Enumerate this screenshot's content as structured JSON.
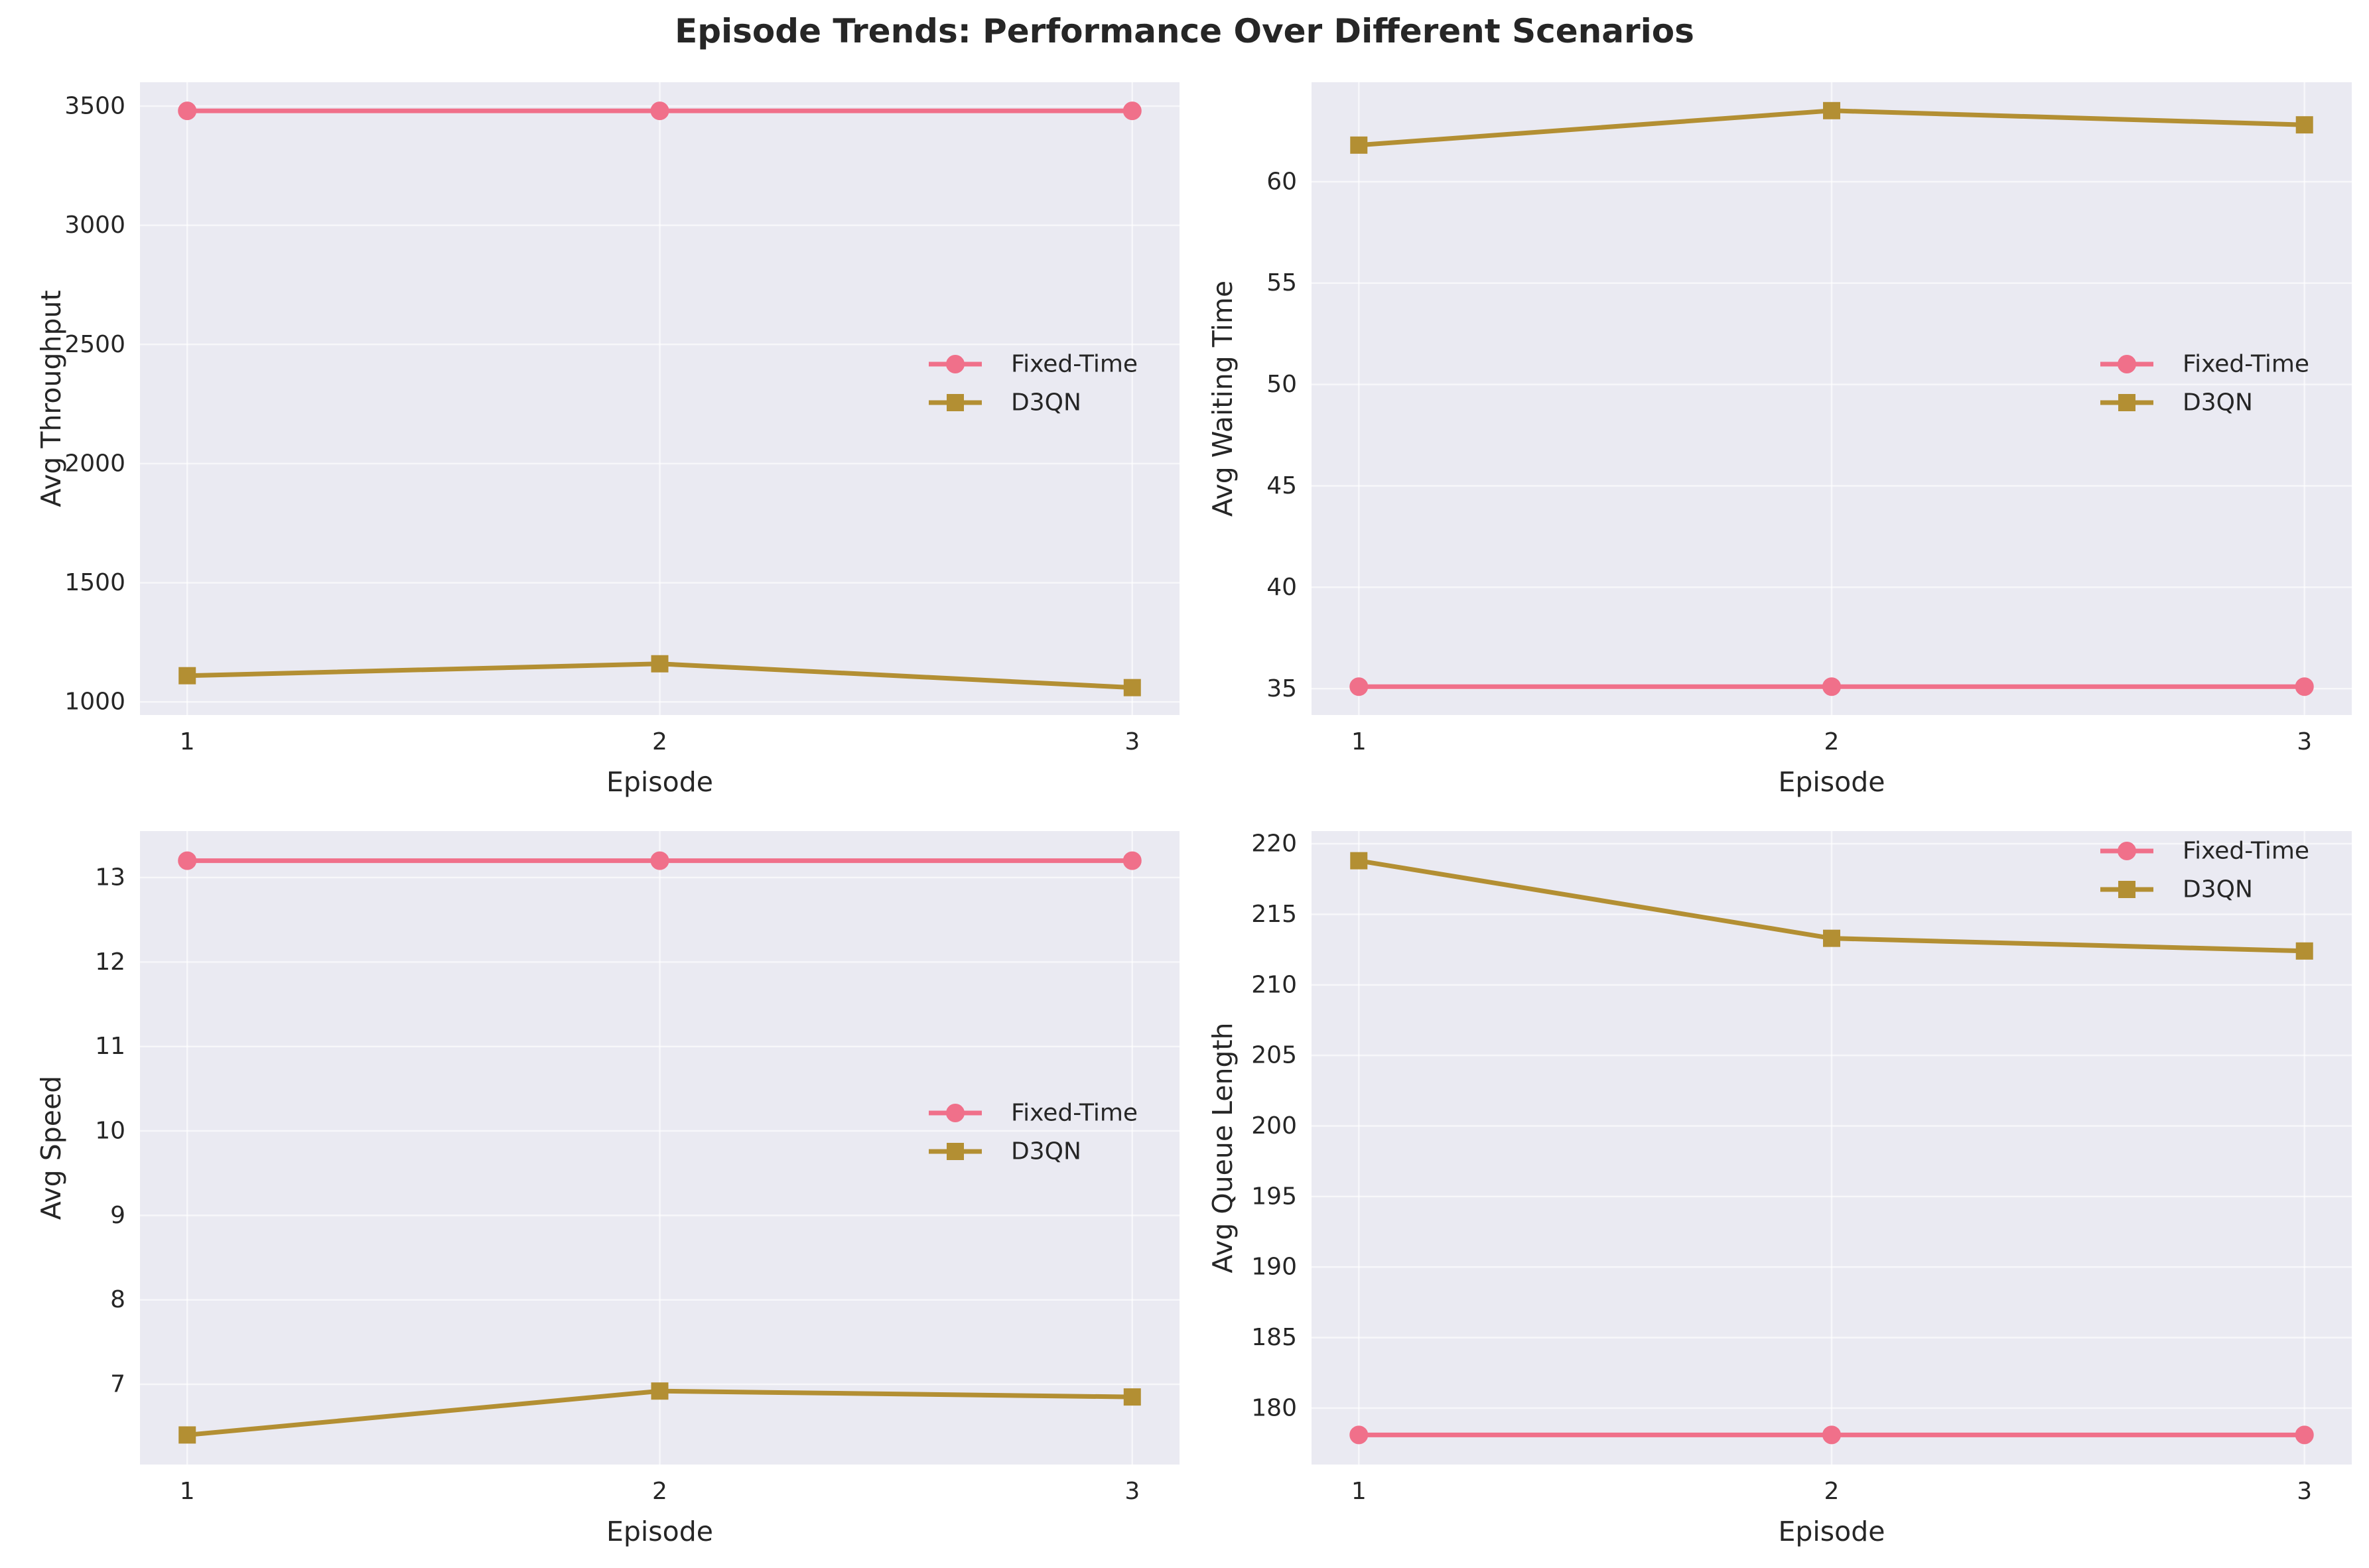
{
  "figure": {
    "title": "Episode Trends: Performance Over Different Scenarios"
  },
  "colors": {
    "fixed_time": "#f0708a",
    "d3qn": "#b38f33",
    "plot_bg": "#eaeaf2",
    "grid": "#ffffff"
  },
  "chart_data": [
    {
      "type": "line",
      "title": "",
      "xlabel": "Episode",
      "ylabel": "Avg Throughput",
      "x": [
        1,
        2,
        3
      ],
      "xlim": [
        0.9,
        3.1
      ],
      "ylim": [
        945,
        3600
      ],
      "yticks": [
        1000,
        1500,
        2000,
        2500,
        3000,
        3500
      ],
      "grid": true,
      "legend_position": "center-right",
      "series": [
        {
          "name": "Fixed-Time",
          "marker": "circle",
          "values": [
            3480,
            3480,
            3480
          ]
        },
        {
          "name": "D3QN",
          "marker": "square",
          "values": [
            1110,
            1160,
            1060
          ]
        }
      ]
    },
    {
      "type": "line",
      "title": "",
      "xlabel": "Episode",
      "ylabel": "Avg Waiting Time",
      "x": [
        1,
        2,
        3
      ],
      "xlim": [
        0.9,
        3.1
      ],
      "ylim": [
        33.7,
        64.9
      ],
      "yticks": [
        35,
        40,
        45,
        50,
        55,
        60
      ],
      "grid": true,
      "legend_position": "center-right",
      "series": [
        {
          "name": "Fixed-Time",
          "marker": "circle",
          "values": [
            35.1,
            35.1,
            35.1
          ]
        },
        {
          "name": "D3QN",
          "marker": "square",
          "values": [
            61.8,
            63.5,
            62.8
          ]
        }
      ]
    },
    {
      "type": "line",
      "title": "",
      "xlabel": "Episode",
      "ylabel": "Avg Speed",
      "x": [
        1,
        2,
        3
      ],
      "xlim": [
        0.9,
        3.1
      ],
      "ylim": [
        6.05,
        13.55
      ],
      "yticks": [
        7,
        8,
        9,
        10,
        11,
        12,
        13
      ],
      "grid": true,
      "legend_position": "center-right",
      "series": [
        {
          "name": "Fixed-Time",
          "marker": "circle",
          "values": [
            13.2,
            13.2,
            13.2
          ]
        },
        {
          "name": "D3QN",
          "marker": "square",
          "values": [
            6.4,
            6.92,
            6.85
          ]
        }
      ]
    },
    {
      "type": "line",
      "title": "",
      "xlabel": "Episode",
      "ylabel": "Avg Queue Length",
      "x": [
        1,
        2,
        3
      ],
      "xlim": [
        0.9,
        3.1
      ],
      "ylim": [
        176,
        220.9
      ],
      "yticks": [
        180,
        185,
        190,
        195,
        200,
        205,
        210,
        215,
        220
      ],
      "grid": true,
      "legend_position": "top-right",
      "series": [
        {
          "name": "Fixed-Time",
          "marker": "circle",
          "values": [
            178.1,
            178.1,
            178.1
          ]
        },
        {
          "name": "D3QN",
          "marker": "square",
          "values": [
            218.8,
            213.3,
            212.4
          ]
        }
      ]
    }
  ]
}
